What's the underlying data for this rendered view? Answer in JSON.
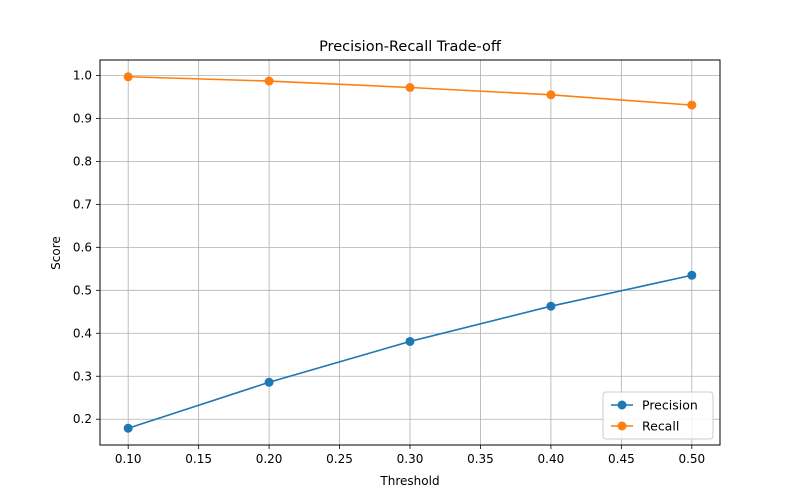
{
  "chart_data": {
    "type": "line",
    "title": "Precision-Recall Trade-off",
    "xlabel": "Threshold",
    "ylabel": "Score",
    "x": [
      0.1,
      0.2,
      0.3,
      0.4,
      0.5
    ],
    "series": [
      {
        "name": "Precision",
        "color": "#1f77b4",
        "marker": "circle",
        "values": [
          0.179,
          0.286,
          0.381,
          0.463,
          0.535
        ]
      },
      {
        "name": "Recall",
        "color": "#ff7f0e",
        "marker": "circle",
        "values": [
          0.997,
          0.987,
          0.972,
          0.955,
          0.931
        ]
      }
    ],
    "xlim": [
      0.08,
      0.52
    ],
    "ylim": [
      0.14,
      1.036
    ],
    "xticks": [
      "0.10",
      "0.15",
      "0.20",
      "0.25",
      "0.30",
      "0.35",
      "0.40",
      "0.45",
      "0.50"
    ],
    "yticks": [
      "0.2",
      "0.3",
      "0.4",
      "0.5",
      "0.6",
      "0.7",
      "0.8",
      "0.9",
      "1.0"
    ],
    "grid": true,
    "legend_position": "lower-right"
  }
}
